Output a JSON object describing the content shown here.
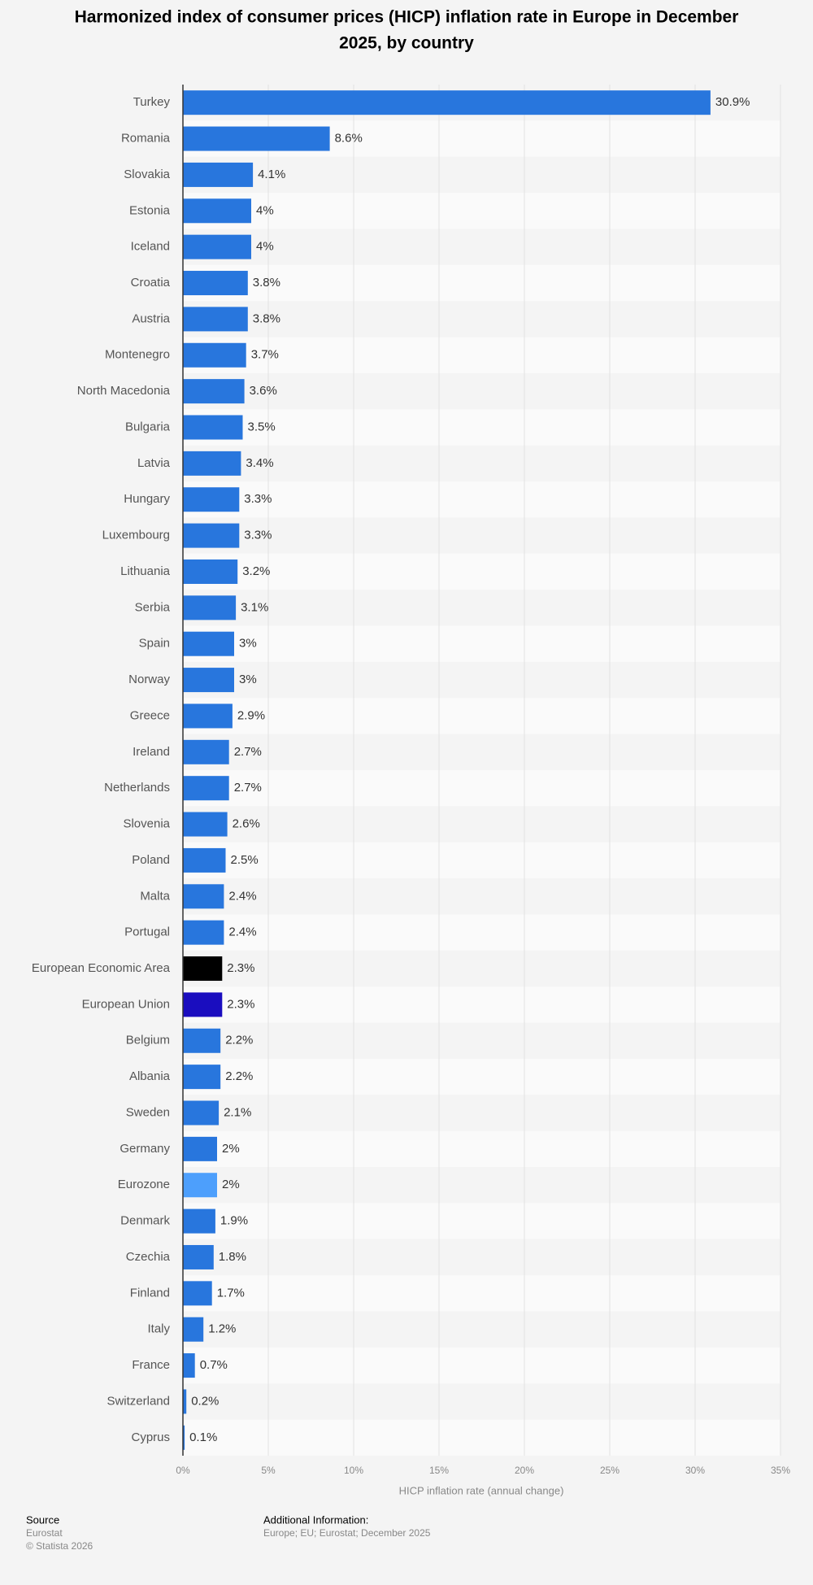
{
  "chart_data": {
    "type": "bar",
    "orientation": "horizontal",
    "title_lines": [
      "Harmonized index of consumer prices (HICP) inflation rate in Europe in December",
      "2025, by country"
    ],
    "x_label": "HICP inflation rate (annual change)",
    "categories": [
      "Turkey",
      "Romania",
      "Slovakia",
      "Estonia",
      "Iceland",
      "Croatia",
      "Austria",
      "Montenegro",
      "North Macedonia",
      "Bulgaria",
      "Latvia",
      "Hungary",
      "Luxembourg",
      "Lithuania",
      "Serbia",
      "Spain",
      "Norway",
      "Greece",
      "Ireland",
      "Netherlands",
      "Slovenia",
      "Poland",
      "Malta",
      "Portugal",
      "European Economic Area",
      "European Union",
      "Belgium",
      "Albania",
      "Sweden",
      "Germany",
      "Eurozone",
      "Denmark",
      "Czechia",
      "Finland",
      "Italy",
      "France",
      "Switzerland",
      "Cyprus"
    ],
    "values": [
      30.9,
      8.6,
      4.1,
      4,
      4,
      3.8,
      3.8,
      3.7,
      3.6,
      3.5,
      3.4,
      3.3,
      3.3,
      3.2,
      3.1,
      3,
      3,
      2.9,
      2.7,
      2.7,
      2.6,
      2.5,
      2.4,
      2.4,
      2.3,
      2.3,
      2.2,
      2.2,
      2.1,
      2,
      2,
      1.9,
      1.8,
      1.7,
      1.2,
      0.7,
      0.2,
      0.1
    ],
    "value_labels": [
      "30.9%",
      "8.6%",
      "4.1%",
      "4%",
      "4%",
      "3.8%",
      "3.8%",
      "3.7%",
      "3.6%",
      "3.5%",
      "3.4%",
      "3.3%",
      "3.3%",
      "3.2%",
      "3.1%",
      "3%",
      "3%",
      "2.9%",
      "2.7%",
      "2.7%",
      "2.6%",
      "2.5%",
      "2.4%",
      "2.4%",
      "2.3%",
      "2.3%",
      "2.2%",
      "2.2%",
      "2.1%",
      "2%",
      "2%",
      "1.9%",
      "1.8%",
      "1.7%",
      "1.2%",
      "0.7%",
      "0.2%",
      "0.1%"
    ],
    "colors": [
      "#2876dd",
      "#2876dd",
      "#2876dd",
      "#2876dd",
      "#2876dd",
      "#2876dd",
      "#2876dd",
      "#2876dd",
      "#2876dd",
      "#2876dd",
      "#2876dd",
      "#2876dd",
      "#2876dd",
      "#2876dd",
      "#2876dd",
      "#2876dd",
      "#2876dd",
      "#2876dd",
      "#2876dd",
      "#2876dd",
      "#2876dd",
      "#2876dd",
      "#2876dd",
      "#2876dd",
      "#000000",
      "#1a0dbf",
      "#2876dd",
      "#2876dd",
      "#2876dd",
      "#2876dd",
      "#4d9ffc",
      "#2876dd",
      "#2876dd",
      "#2876dd",
      "#2876dd",
      "#2876dd",
      "#2876dd",
      "#2876dd"
    ],
    "xlim": [
      0,
      35
    ],
    "xticks": [
      {
        "value": 0,
        "label": "0%"
      },
      {
        "value": 5,
        "label": "5%"
      },
      {
        "value": 10,
        "label": "10%"
      },
      {
        "value": 15,
        "label": "15%"
      },
      {
        "value": 20,
        "label": "20%"
      },
      {
        "value": 25,
        "label": "25%"
      },
      {
        "value": 30,
        "label": "30%"
      },
      {
        "value": 35,
        "label": "35%"
      }
    ],
    "grid": true
  },
  "footer": {
    "source_label": "Source",
    "source": "Eurostat",
    "copyright": "© Statista 2026",
    "additional_label": "Additional Information:",
    "additional": "Europe; EU; Eurostat; December 2025"
  }
}
